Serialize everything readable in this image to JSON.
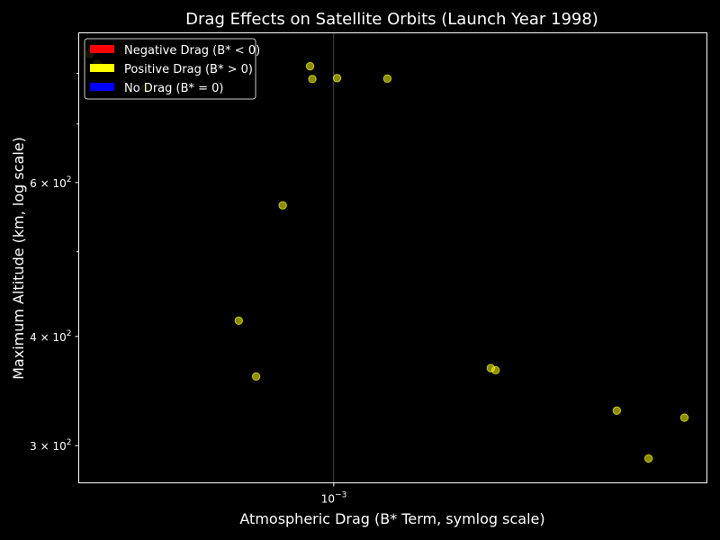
{
  "chart_data": {
    "type": "scatter",
    "title": "Drag Effects on Satellite Orbits (Launch Year 1998)",
    "xlabel": "Atmospheric Drag (B* Term, symlog scale)",
    "ylabel": "Maximum Altitude (km, log scale)",
    "x_scale": "symlog",
    "y_scale": "log",
    "xlim": [
      0.00031,
      0.00201
    ],
    "ylim": [
      272,
      890
    ],
    "x_ticks": [
      {
        "value": 0.001,
        "label": "10",
        "exponent": "−3"
      }
    ],
    "y_ticks": [
      {
        "value": 300,
        "label": "3 × 10",
        "exponent": "2"
      },
      {
        "value": 400,
        "label": "4 × 10",
        "exponent": "2"
      },
      {
        "value": 600,
        "label": "6 × 10",
        "exponent": "2"
      }
    ],
    "y_minor_ticks": [
      500,
      700,
      800
    ],
    "grid": "x-major",
    "legend_position": "top-left",
    "legend": [
      {
        "label": "Negative Drag (B* < 0)",
        "color": "#ff0000"
      },
      {
        "label": "Positive Drag (B* > 0)",
        "color": "#ffff00"
      },
      {
        "label": "No Drag (B* = 0)",
        "color": "#0000ff"
      }
    ],
    "series": [
      {
        "name": "Positive Drag (B* > 0)",
        "color": "#ffff00",
        "points": [
          {
            "x": 0.00034,
            "y": 842
          },
          {
            "x": 0.00036,
            "y": 820
          },
          {
            "x": 0.00049,
            "y": 770
          },
          {
            "x": 0.000743,
            "y": 417
          },
          {
            "x": 0.00079,
            "y": 360
          },
          {
            "x": 0.000862,
            "y": 565
          },
          {
            "x": 0.000936,
            "y": 815
          },
          {
            "x": 0.000942,
            "y": 788
          },
          {
            "x": 0.001009,
            "y": 790
          },
          {
            "x": 0.001145,
            "y": 789
          },
          {
            "x": 0.001425,
            "y": 368
          },
          {
            "x": 0.001438,
            "y": 366
          },
          {
            "x": 0.001766,
            "y": 329
          },
          {
            "x": 0.001852,
            "y": 290
          },
          {
            "x": 0.001949,
            "y": 323
          }
        ]
      }
    ]
  }
}
